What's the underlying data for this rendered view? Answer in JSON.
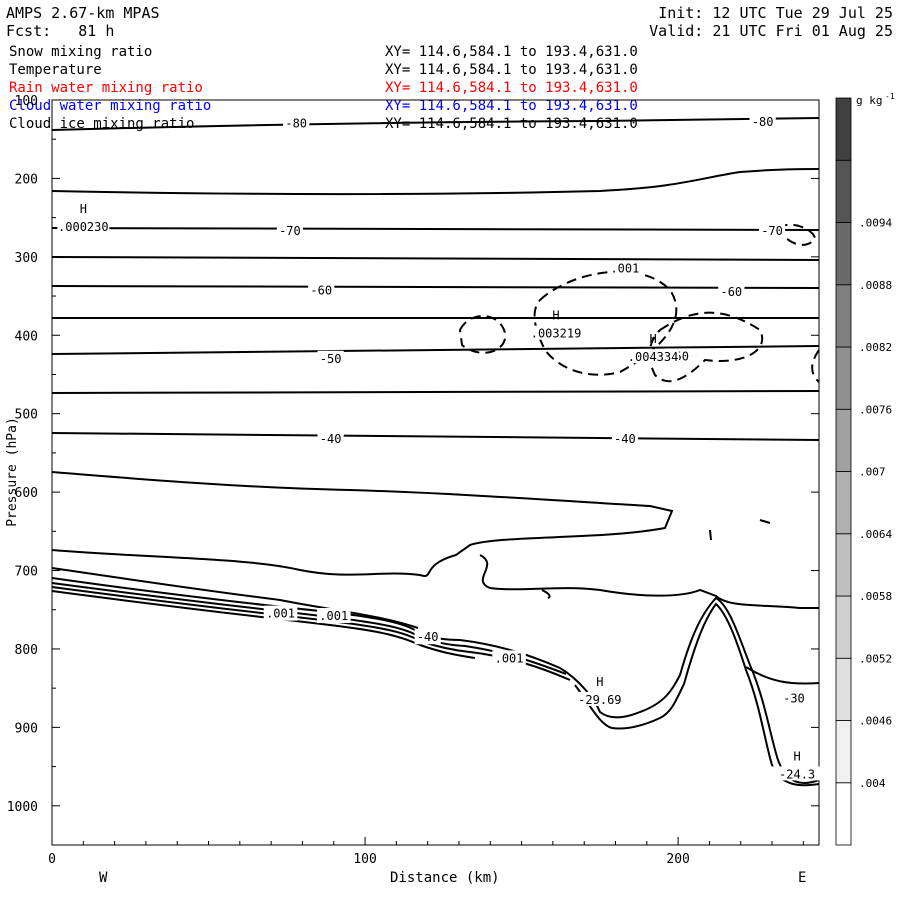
{
  "header": {
    "model": "AMPS 2.67-km MPAS",
    "forecast": "Fcst:   81 h",
    "init": "Init: 12 UTC Tue 29 Jul 25",
    "valid": "Valid: 21 UTC Fri 01 Aug 25"
  },
  "legend": [
    {
      "name": "Snow mixing ratio",
      "range": "XY= 114.6,584.1 to 193.4,631.0",
      "color": "#000000"
    },
    {
      "name": "Temperature",
      "range": "XY= 114.6,584.1 to 193.4,631.0",
      "color": "#000000"
    },
    {
      "name": "Rain water mixing ratio",
      "range": "XY= 114.6,584.1 to 193.4,631.0",
      "color": "#ff0000"
    },
    {
      "name": "Cloud water mixing ratio",
      "range": "XY= 114.6,584.1 to 193.4,631.0",
      "color": "#0000ff"
    },
    {
      "name": "Cloud ice mixing ratio",
      "range": "XY= 114.6,584.1 to 193.4,631.0",
      "color": "#000000"
    }
  ],
  "chart_data": {
    "type": "contour",
    "xlabel": "Distance (km)",
    "ylabel": "Pressure (hPa)",
    "xlim": [
      0,
      245
    ],
    "ylim": [
      1050,
      100
    ],
    "x_ticks": [
      "0",
      "100",
      "200"
    ],
    "y_ticks": [
      "100",
      "200",
      "300",
      "400",
      "500",
      "600",
      "700",
      "800",
      "900",
      "1000"
    ],
    "x_tick_values": [
      0,
      100,
      200
    ],
    "y_tick_values": [
      100,
      200,
      300,
      400,
      500,
      600,
      700,
      800,
      900,
      1000
    ],
    "direction_labels": {
      "left": "W",
      "right": "E"
    },
    "temperature_contour_labels": [
      {
        "text": "-80",
        "x": 78,
        "p": 130
      },
      {
        "text": "-80",
        "x": 227,
        "p": 128
      },
      {
        "text": "-70",
        "x": 76,
        "p": 267
      },
      {
        "text": "-70",
        "x": 230,
        "p": 267
      },
      {
        "text": "-60",
        "x": 86,
        "p": 343
      },
      {
        "text": "-60",
        "x": 217,
        "p": 345
      },
      {
        "text": "-50",
        "x": 89,
        "p": 430
      },
      {
        "text": "-50",
        "x": 200,
        "p": 427
      },
      {
        "text": "-40",
        "x": 89,
        "p": 532
      },
      {
        "text": "-40",
        "x": 183,
        "p": 532
      },
      {
        "text": "-40",
        "x": 120,
        "p": 785
      },
      {
        "text": "-30",
        "x": 237,
        "p": 863
      }
    ],
    "mixing_ratio_labels": [
      {
        "text": ".001",
        "x": 183,
        "p": 315
      },
      {
        "text": ".001",
        "x": 73,
        "p": 755
      },
      {
        "text": ".001",
        "x": 90,
        "p": 758
      },
      {
        "text": ".001",
        "x": 146,
        "p": 812
      }
    ],
    "extrema": [
      {
        "marker": "H",
        "value": ".000230",
        "x": 10,
        "p": 262
      },
      {
        "marker": "H",
        "value": ".003219",
        "x": 161,
        "p": 398
      },
      {
        "marker": "H",
        "value": ".004334",
        "x": 192,
        "p": 428
      },
      {
        "marker": "H",
        "value": "-29.69",
        "x": 175,
        "p": 865
      },
      {
        "marker": "H",
        "value": "-24.3",
        "x": 238,
        "p": 960
      }
    ],
    "colorbar": {
      "unit": "g kg",
      "unit_exp": "-1",
      "labels": [
        ".004",
        ".0046",
        ".0052",
        ".0058",
        ".0064",
        ".007",
        ".0076",
        ".0082",
        ".0088",
        ".0094"
      ],
      "shades": [
        "#ffffff",
        "#f0f0f0",
        "#e0e0e0",
        "#d0d0d0",
        "#c0c0c0",
        "#b0b0b0",
        "#a0a0a0",
        "#909090",
        "#808080",
        "#6a6a6a",
        "#555555",
        "#404040"
      ]
    }
  }
}
